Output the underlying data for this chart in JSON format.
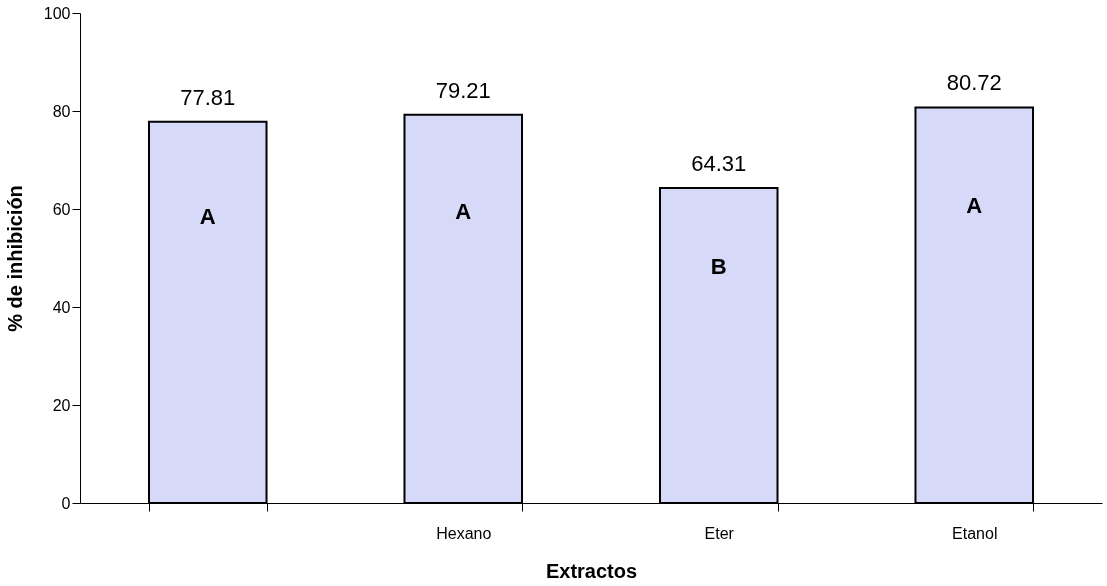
{
  "chart_data": {
    "type": "bar",
    "xlabel": "Extractos",
    "ylabel": "% de inhibición",
    "categories": [
      null,
      "Hexano",
      "Eter",
      "Etanol"
    ],
    "values": [
      77.81,
      79.21,
      64.31,
      80.72
    ],
    "color": "#d6d9f7",
    "data_labels": true,
    "ylim": [
      0,
      100
    ],
    "yticks": [
      0,
      20,
      40,
      60,
      80,
      100
    ],
    "grid": false,
    "annotations": [
      "A",
      "A",
      "B",
      "A"
    ]
  }
}
